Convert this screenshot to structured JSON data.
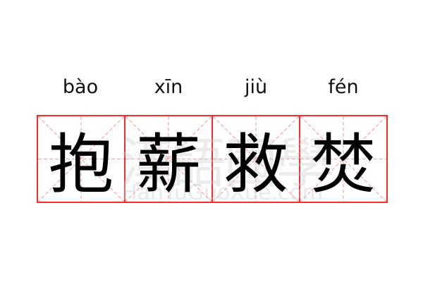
{
  "entries": [
    {
      "pinyin": "bào",
      "char": "抱"
    },
    {
      "pinyin": "xīn",
      "char": "薪"
    },
    {
      "pinyin": "jiù",
      "char": "救"
    },
    {
      "pinyin": "fén",
      "char": "焚"
    }
  ],
  "watermark": {
    "text": "漢語國學",
    "url": "HanYuGuoXue.com"
  },
  "colors": {
    "grid": "#ff2a2a",
    "guide": "#f8a8a8",
    "text": "#000000"
  }
}
